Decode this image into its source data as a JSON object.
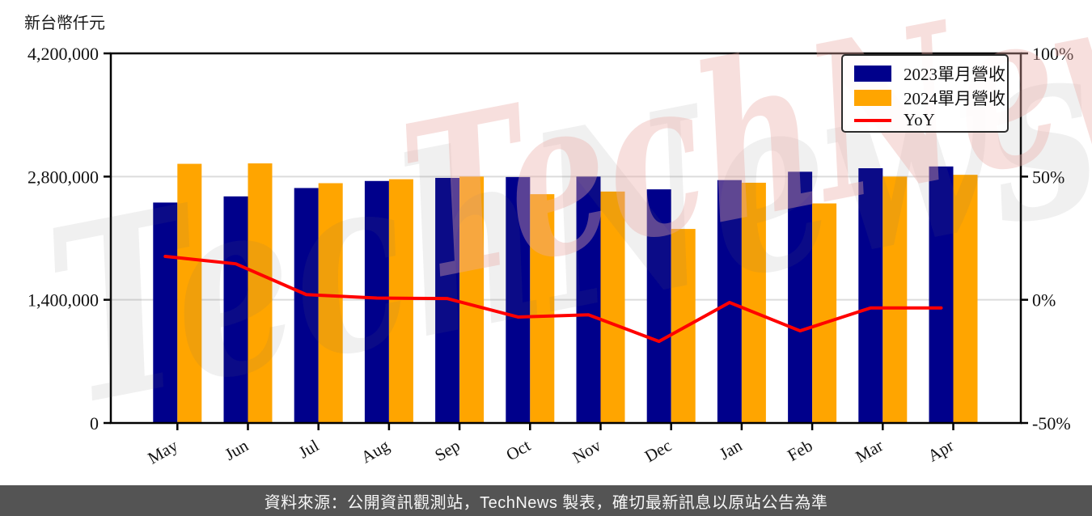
{
  "chart_data": {
    "type": "bar",
    "title": "",
    "unit_label": "新台幣仟元",
    "categories": [
      "May",
      "Jun",
      "Jul",
      "Aug",
      "Sep",
      "Oct",
      "Nov",
      "Dec",
      "Jan",
      "Feb",
      "Mar",
      "Apr"
    ],
    "series": [
      {
        "name": "2023單月營收",
        "type": "bar",
        "color": "#00008B",
        "axis": "left",
        "values": [
          2505000,
          2575000,
          2670000,
          2750000,
          2785000,
          2795000,
          2800000,
          2655000,
          2760000,
          2855000,
          2895000,
          2915000
        ]
      },
      {
        "name": "2024單月營收",
        "type": "bar",
        "color": "#FFA500",
        "axis": "left",
        "values": [
          2945000,
          2950000,
          2725000,
          2770000,
          2800000,
          2600000,
          2630000,
          2205000,
          2730000,
          2495000,
          2800000,
          2820000
        ]
      },
      {
        "name": "YoY",
        "type": "line",
        "color": "#FF0000",
        "axis": "right",
        "values_pct": [
          17.6,
          14.6,
          2.1,
          0.7,
          0.5,
          -7.0,
          -6.1,
          -16.9,
          -1.1,
          -12.6,
          -3.3,
          -3.3
        ]
      }
    ],
    "left_axis": {
      "ticks": [
        "0",
        "1,400,000",
        "2,800,000",
        "4,200,000"
      ],
      "tick_values": [
        0,
        1400000,
        2800000,
        4200000
      ],
      "min": 0,
      "max": 4200000
    },
    "right_axis": {
      "ticks": [
        "-50%",
        "0%",
        "50%",
        "100%"
      ],
      "tick_values": [
        -50,
        0,
        50,
        100
      ],
      "min": -50,
      "max": 100
    },
    "grid": true,
    "legend_position": "top-right"
  },
  "watermark": {
    "text": "TechNews",
    "pink": "#E9AAA5",
    "gray": "#6E6E6E"
  },
  "footer": {
    "text": "資料來源：公開資訊觀測站，TechNews 製表，確切最新訊息以原站公告為準"
  },
  "colors": {
    "grid": "#DCDCDC",
    "frame": "#000000",
    "footer_bg": "#545454"
  }
}
